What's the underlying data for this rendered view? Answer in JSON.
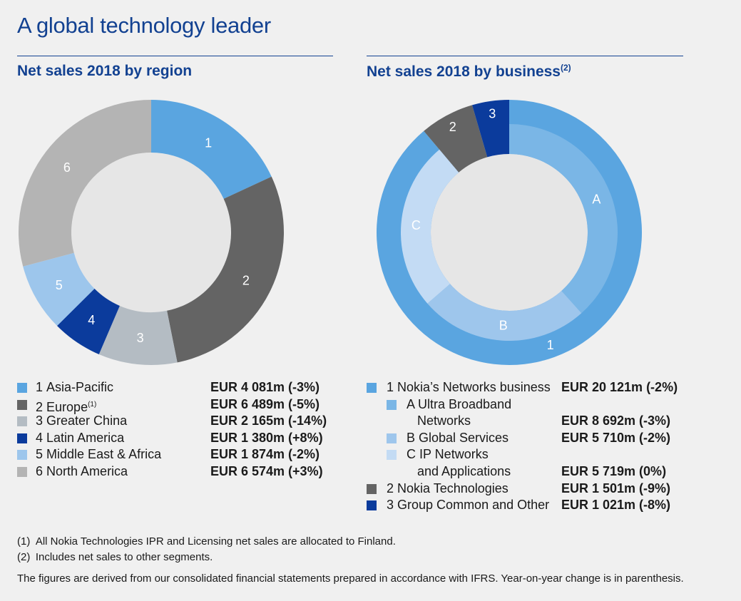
{
  "page": {
    "title": "A global technology leader"
  },
  "chart_data": [
    {
      "type": "pie",
      "variant": "donut",
      "title": "Net sales 2018 by region",
      "unit": "EUR m",
      "slices": [
        {
          "key": "1",
          "name": "Asia-Pacific",
          "value": 4081,
          "display": "EUR 4 081m (-3%)",
          "color": "#5aa5e0"
        },
        {
          "key": "2",
          "name": "Europe",
          "note": "(1)",
          "value": 6489,
          "display": "EUR 6 489m (-5%)",
          "color": "#646464"
        },
        {
          "key": "3",
          "name": "Greater China",
          "value": 2165,
          "display": "EUR 2 165m (-14%)",
          "color": "#b4bcc3"
        },
        {
          "key": "4",
          "name": "Latin America",
          "value": 1380,
          "display": "EUR 1 380m (+8%)",
          "color": "#0b3b9c"
        },
        {
          "key": "5",
          "name": "Middle East & Africa",
          "value": 1874,
          "display": "EUR 1 874m (-2%)",
          "color": "#9dc6ec"
        },
        {
          "key": "6",
          "name": "North America",
          "value": 6574,
          "display": "EUR 6 574m (+3%)",
          "color": "#b4b4b4"
        }
      ]
    },
    {
      "type": "pie",
      "variant": "nested-donut",
      "title": "Net sales 2018 by business",
      "title_note": "(2)",
      "unit": "EUR m",
      "outer": [
        {
          "key": "1",
          "name": "Nokia’s Networks business",
          "value": 20121,
          "display": "EUR 20 121m (-2%)",
          "color": "#5aa5e0"
        },
        {
          "key": "2",
          "name": "Nokia Technologies",
          "value": 1501,
          "display": "EUR 1 501m (-9%)",
          "color": "#646464"
        },
        {
          "key": "3",
          "name": "Group Common and Other",
          "value": 1021,
          "display": "EUR 1 021m (-8%)",
          "color": "#0b3b9c"
        }
      ],
      "inner": [
        {
          "key": "A",
          "name_line1": "A Ultra Broadband",
          "name_line2": "Networks",
          "value": 8692,
          "display": "EUR 8 692m (-3%)",
          "color": "#7ab6e6"
        },
        {
          "key": "B",
          "name_line1": "B Global Services",
          "value": 5710,
          "display": "EUR 5 710m (-2%)",
          "color": "#9ec6ec"
        },
        {
          "key": "C",
          "name_line1": "C IP Networks",
          "name_line2": "and Applications",
          "value": 5719,
          "display": "EUR 5 719m (0%)",
          "color": "#c3dbf4"
        }
      ]
    }
  ],
  "footnotes": {
    "note1": "(1) All Nokia Technologies IPR and Licensing net sales are allocated to Finland.",
    "note2": "(2) Includes net sales to other segments.",
    "disclaimer": "The figures are derived from our consolidated financial statements prepared in accordance with IFRS. Year-on-year change is in parenthesis."
  }
}
